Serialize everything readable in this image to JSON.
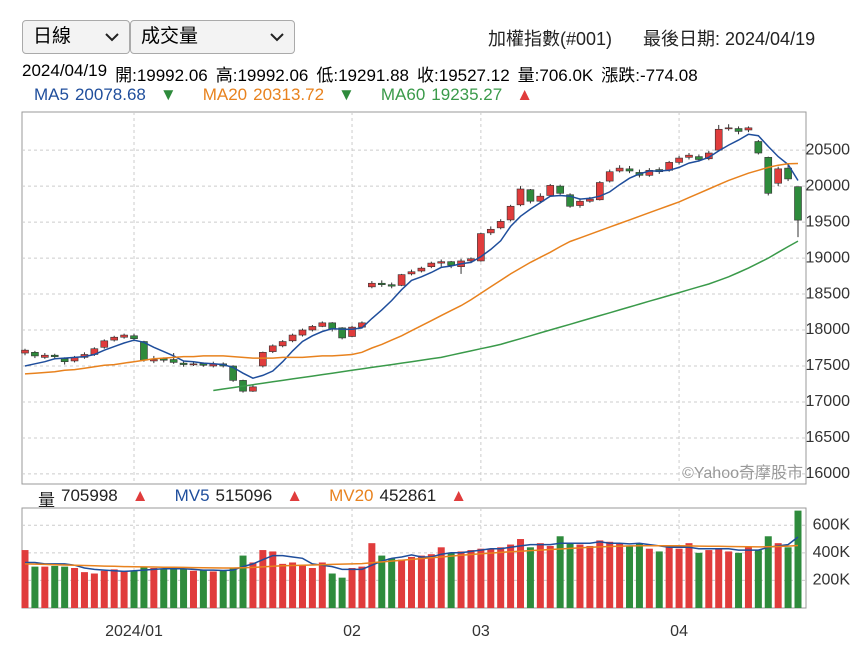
{
  "header": {
    "selects": [
      "日線",
      "成交量"
    ],
    "symbol": "加權指數(#001)",
    "last_date": "最後日期: 2024/04/19",
    "quote": [
      "2024/04/19",
      "開:19992.06",
      "高:19992.06",
      "低:19291.88",
      "收:19527.12",
      "量:706.0K",
      "漲跌:-774.08"
    ]
  },
  "chart_data": [
    {
      "type": "candlestick",
      "watermark": "©Yahoo奇摩股市",
      "up_color": "#e03c3c",
      "down_color": "#2e8b3c",
      "grid": true,
      "ylim": [
        15860,
        21030
      ],
      "yticks": [
        16000,
        16500,
        17000,
        17500,
        18000,
        18500,
        19000,
        19500,
        20000,
        20500
      ],
      "open": [
        17680,
        17690,
        17620,
        17650,
        17600,
        17570,
        17620,
        17660,
        17760,
        17860,
        17900,
        17920,
        17840,
        17570,
        17600,
        17590,
        17540,
        17520,
        17530,
        17500,
        17530,
        17500,
        17300,
        17150,
        17500,
        17700,
        17780,
        17850,
        17930,
        18000,
        18050,
        18100,
        18030,
        17910,
        18040,
        18600,
        18650,
        18630,
        18620,
        18780,
        18820,
        18880,
        18930,
        18950,
        18880,
        18960,
        18960,
        19350,
        19420,
        19530,
        19740,
        19950,
        19790,
        19870,
        20000,
        19880,
        19730,
        19790,
        19810,
        20070,
        20210,
        20240,
        20190,
        20150,
        20230,
        20220,
        20330,
        20400,
        20410,
        20380,
        20500,
        20800,
        20800,
        20780,
        20620,
        20400,
        20040,
        20250,
        19992.06
      ],
      "high": [
        17740,
        17710,
        17680,
        17670,
        17620,
        17640,
        17690,
        17760,
        17870,
        17920,
        17950,
        17950,
        17850,
        17640,
        17620,
        17680,
        17570,
        17560,
        17550,
        17560,
        17550,
        17510,
        17310,
        17240,
        17700,
        17800,
        17860,
        17950,
        18020,
        18070,
        18120,
        18110,
        18040,
        18060,
        18120,
        18680,
        18690,
        18660,
        18780,
        18840,
        18880,
        18950,
        18980,
        18960,
        18990,
        19010,
        19350,
        19440,
        19540,
        19740,
        20000,
        19960,
        19900,
        20030,
        20020,
        19900,
        19830,
        19850,
        20070,
        20230,
        20290,
        20280,
        20230,
        20250,
        20260,
        20350,
        20420,
        20460,
        20440,
        20490,
        20850,
        20860,
        20830,
        20830,
        20640,
        20410,
        20270,
        20300,
        19992.06
      ],
      "low": [
        17650,
        17610,
        17600,
        17600,
        17520,
        17550,
        17600,
        17640,
        17740,
        17840,
        17880,
        17850,
        17560,
        17540,
        17550,
        17530,
        17490,
        17500,
        17490,
        17480,
        17480,
        17280,
        17130,
        17140,
        17480,
        17680,
        17760,
        17830,
        17910,
        17980,
        18040,
        17980,
        17870,
        17900,
        18020,
        18580,
        18600,
        18580,
        18610,
        18760,
        18800,
        18860,
        18880,
        18860,
        18780,
        18930,
        18950,
        19320,
        19400,
        19510,
        19720,
        19760,
        19760,
        19850,
        19880,
        19700,
        19700,
        19770,
        19800,
        20050,
        20190,
        20180,
        20120,
        20130,
        20170,
        20200,
        20300,
        20370,
        20340,
        20360,
        20480,
        20770,
        20720,
        20750,
        20440,
        19870,
        20000,
        20070,
        19291.88
      ],
      "close": [
        17720,
        17640,
        17650,
        17630,
        17560,
        17620,
        17660,
        17740,
        17850,
        17900,
        17930,
        17880,
        17580,
        17590,
        17580,
        17550,
        17520,
        17530,
        17510,
        17530,
        17500,
        17300,
        17150,
        17210,
        17690,
        17780,
        17840,
        17930,
        18000,
        18050,
        18100,
        18010,
        17890,
        18040,
        18100,
        18650,
        18630,
        18610,
        18770,
        18810,
        18860,
        18930,
        18950,
        18900,
        18960,
        18990,
        19340,
        19400,
        19510,
        19720,
        19960,
        19790,
        19860,
        20010,
        19900,
        19720,
        19790,
        19820,
        20050,
        20200,
        20250,
        20210,
        20150,
        20220,
        20200,
        20330,
        20390,
        20430,
        20370,
        20460,
        20790,
        20810,
        20760,
        20810,
        20460,
        19900,
        20240,
        20100,
        19527.12
      ],
      "series": [
        {
          "name": "MA5",
          "color": "#1f4e9c",
          "trend": "▼",
          "values": [
            17500,
            17530,
            17560,
            17600,
            17610,
            17620,
            17630,
            17660,
            17720,
            17770,
            17820,
            17860,
            17830,
            17760,
            17700,
            17640,
            17570,
            17560,
            17540,
            17530,
            17520,
            17480,
            17400,
            17330,
            17370,
            17430,
            17560,
            17710,
            17840,
            17920,
            17980,
            18020,
            18010,
            18010,
            18030,
            18160,
            18280,
            18410,
            18560,
            18690,
            18740,
            18800,
            18870,
            18890,
            18920,
            18940,
            19020,
            19120,
            19240,
            19440,
            19580,
            19680,
            19770,
            19860,
            19870,
            19860,
            19820,
            19830,
            19860,
            19920,
            20020,
            20110,
            20170,
            20210,
            20210,
            20220,
            20260,
            20320,
            20350,
            20400,
            20490,
            20570,
            20640,
            20720,
            20700,
            20550,
            20410,
            20300,
            20078.68
          ]
        },
        {
          "name": "MA20",
          "color": "#e8821e",
          "trend": "▼",
          "values": [
            17390,
            17400,
            17410,
            17420,
            17440,
            17450,
            17470,
            17490,
            17510,
            17520,
            17540,
            17560,
            17580,
            17600,
            17610,
            17620,
            17630,
            17630,
            17640,
            17640,
            17640,
            17630,
            17620,
            17610,
            17610,
            17610,
            17620,
            17620,
            17620,
            17630,
            17640,
            17640,
            17650,
            17660,
            17690,
            17750,
            17800,
            17860,
            17920,
            17990,
            18060,
            18130,
            18200,
            18270,
            18340,
            18420,
            18510,
            18600,
            18690,
            18780,
            18860,
            18940,
            19010,
            19080,
            19160,
            19230,
            19280,
            19330,
            19380,
            19430,
            19480,
            19530,
            19580,
            19630,
            19680,
            19730,
            19780,
            19840,
            19900,
            19960,
            20020,
            20080,
            20130,
            20180,
            20220,
            20260,
            20290,
            20310,
            20313.72
          ]
        },
        {
          "name": "MA60",
          "color": "#3a9a4a",
          "trend": "▲",
          "values": [
            null,
            null,
            null,
            null,
            null,
            null,
            null,
            null,
            null,
            null,
            null,
            null,
            null,
            null,
            null,
            null,
            null,
            null,
            null,
            17160,
            17180,
            17200,
            17220,
            17240,
            17260,
            17280,
            17300,
            17320,
            17340,
            17360,
            17380,
            17400,
            17420,
            17440,
            17460,
            17480,
            17500,
            17520,
            17540,
            17560,
            17580,
            17600,
            17620,
            17650,
            17680,
            17710,
            17740,
            17770,
            17800,
            17840,
            17880,
            17920,
            17960,
            18000,
            18040,
            18080,
            18120,
            18160,
            18200,
            18240,
            18280,
            18320,
            18360,
            18400,
            18440,
            18480,
            18520,
            18560,
            18600,
            18640,
            18690,
            18740,
            18800,
            18860,
            18930,
            19000,
            19080,
            19160,
            19235.27
          ]
        }
      ]
    },
    {
      "type": "bar",
      "name": "量",
      "trend": "▲",
      "grid": true,
      "ylim": [
        0,
        725000
      ],
      "yticks": [
        {
          "value": 200000,
          "label": "200K"
        },
        {
          "value": 400000,
          "label": "400K"
        },
        {
          "value": 600000,
          "label": "600K"
        }
      ],
      "xticks": [
        {
          "value": 11,
          "label": "2024/01"
        },
        {
          "value": 33,
          "label": "02"
        },
        {
          "value": 46,
          "label": "03"
        },
        {
          "value": 66,
          "label": "04"
        }
      ],
      "values": [
        420000,
        300000,
        300000,
        305000,
        300000,
        290000,
        260000,
        250000,
        270000,
        280000,
        270000,
        270000,
        300000,
        290000,
        280000,
        285000,
        280000,
        270000,
        275000,
        265000,
        270000,
        290000,
        380000,
        330000,
        420000,
        410000,
        320000,
        330000,
        310000,
        290000,
        330000,
        250000,
        220000,
        290000,
        300000,
        470000,
        380000,
        360000,
        350000,
        370000,
        380000,
        390000,
        440000,
        400000,
        410000,
        420000,
        430000,
        430000,
        440000,
        460000,
        500000,
        440000,
        470000,
        450000,
        520000,
        470000,
        460000,
        450000,
        490000,
        480000,
        470000,
        450000,
        470000,
        430000,
        410000,
        440000,
        430000,
        470000,
        400000,
        420000,
        430000,
        410000,
        400000,
        440000,
        420000,
        520000,
        470000,
        440000,
        705998
      ],
      "series": [
        {
          "name": "MV5",
          "color": "#1f4e9c",
          "trend": "▲",
          "values": [
            330000,
            330000,
            320000,
            320000,
            320000,
            310000,
            290000,
            280000,
            275000,
            270000,
            265000,
            270000,
            275000,
            280000,
            285000,
            285000,
            285000,
            280000,
            275000,
            275000,
            272000,
            275000,
            300000,
            320000,
            350000,
            380000,
            380000,
            370000,
            360000,
            320000,
            310000,
            300000,
            280000,
            280000,
            280000,
            310000,
            340000,
            360000,
            370000,
            385000,
            370000,
            370000,
            390000,
            400000,
            400000,
            410000,
            420000,
            430000,
            430000,
            440000,
            450000,
            460000,
            460000,
            460000,
            470000,
            470000,
            470000,
            470000,
            480000,
            470000,
            470000,
            465000,
            470000,
            460000,
            450000,
            440000,
            440000,
            440000,
            430000,
            430000,
            430000,
            430000,
            420000,
            420000,
            420000,
            440000,
            450000,
            460000,
            515096
          ]
        },
        {
          "name": "MV20",
          "color": "#e8821e",
          "trend": "▲",
          "values": [
            320000,
            318000,
            316000,
            314000,
            312000,
            310000,
            308000,
            306000,
            304000,
            302000,
            300000,
            299000,
            298000,
            297000,
            296000,
            295000,
            294000,
            293000,
            292000,
            291000,
            290000,
            290000,
            292000,
            294000,
            298000,
            302000,
            306000,
            308000,
            310000,
            312000,
            314000,
            316000,
            318000,
            320000,
            322000,
            328000,
            334000,
            340000,
            346000,
            352000,
            358000,
            364000,
            370000,
            376000,
            382000,
            388000,
            393000,
            398000,
            403000,
            408000,
            412000,
            416000,
            420000,
            424000,
            428000,
            432000,
            436000,
            440000,
            443000,
            446000,
            448000,
            450000,
            451000,
            452000,
            452000,
            452000,
            451000,
            450000,
            449000,
            448000,
            447000,
            446000,
            445000,
            444000,
            443000,
            444000,
            446000,
            449000,
            452861
          ]
        }
      ]
    }
  ]
}
